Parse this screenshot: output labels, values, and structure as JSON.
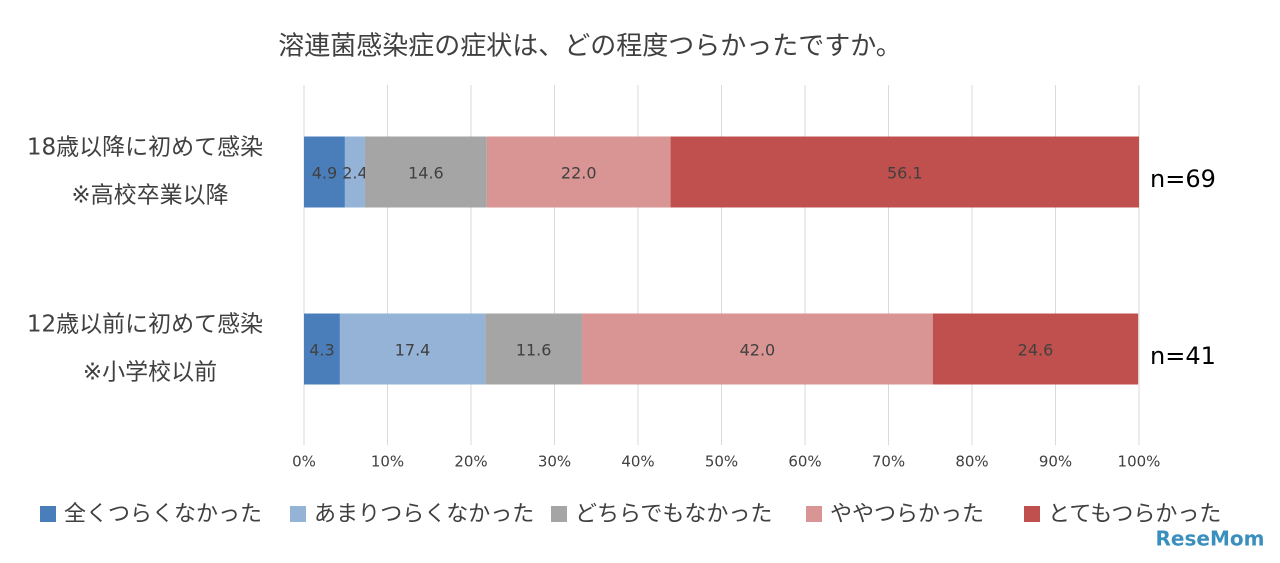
{
  "chart_data": {
    "type": "stacked_bar_horizontal",
    "title": "溶連菌感染症の症状は、どの程度つらかったですか。",
    "categories": [
      [
        "18歳以降に初めて感染",
        "※高校卒業以降"
      ],
      [
        "12歳以前に初めて感染",
        "※小学校以前"
      ]
    ],
    "n_labels": [
      "n=69",
      "n=41"
    ],
    "series": [
      {
        "name": "全くつらくなかった",
        "color": "#4a7ebb",
        "values": [
          4.9,
          4.3
        ],
        "value_labels": [
          "4.9",
          "4.3"
        ]
      },
      {
        "name": "あまりつらくなかった",
        "color": "#95b3d7",
        "values": [
          2.4,
          17.4
        ],
        "value_labels": [
          "2.4",
          "17.4"
        ]
      },
      {
        "name": "どちらでもなかった",
        "color": "#a5a5a5",
        "values": [
          14.6,
          11.6
        ],
        "value_labels": [
          "14.6",
          "11.6"
        ]
      },
      {
        "name": "ややつらかった",
        "color": "#d99594",
        "values": [
          22.0,
          42.0
        ],
        "value_labels": [
          "22.0",
          "42.0"
        ]
      },
      {
        "name": "とてもつらかった",
        "color": "#c0504d",
        "values": [
          56.1,
          24.6
        ],
        "value_labels": [
          "56.1",
          "24.6"
        ]
      }
    ],
    "xlim": [
      0,
      100
    ],
    "xticks": [
      {
        "value": 0,
        "label": "0%"
      },
      {
        "value": 10,
        "label": "10%"
      },
      {
        "value": 20,
        "label": "20%"
      },
      {
        "value": 30,
        "label": "30%"
      },
      {
        "value": 40,
        "label": "40%"
      },
      {
        "value": 50,
        "label": "50%"
      },
      {
        "value": 60,
        "label": "60%"
      },
      {
        "value": 70,
        "label": "70%"
      },
      {
        "value": 80,
        "label": "80%"
      },
      {
        "value": 90,
        "label": "90%"
      },
      {
        "value": 100,
        "label": "100%"
      }
    ],
    "grid": true,
    "watermark": "ReseMom"
  }
}
